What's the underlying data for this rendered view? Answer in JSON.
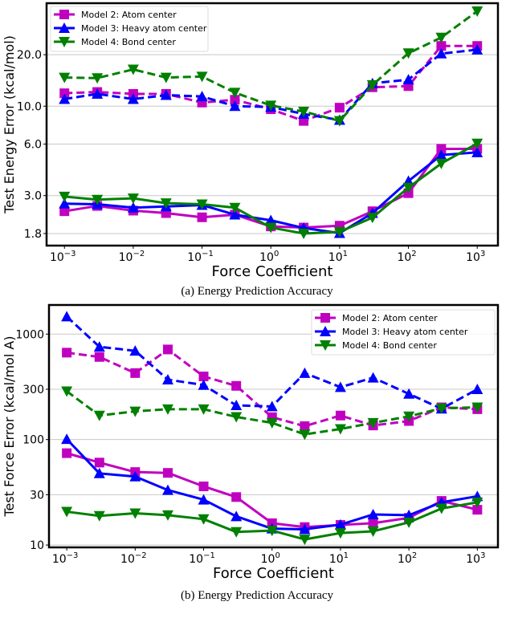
{
  "chart_data": [
    {
      "type": "line",
      "caption": "(a) Energy Prediction Accuracy",
      "xlabel": "Force Coefficient",
      "ylabel": "Test Energy Error (kcal/mol)",
      "xscale": "log",
      "yscale": "log",
      "xlim": [
        0.00055,
        2000
      ],
      "ylim": [
        1.53,
        40
      ],
      "x_ticks": [
        {
          "base": "10",
          "exp": "−3",
          "value": 0.001
        },
        {
          "base": "10",
          "exp": "−2",
          "value": 0.01
        },
        {
          "base": "10",
          "exp": "−1",
          "value": 0.1
        },
        {
          "base": "10",
          "exp": "0",
          "value": 1
        },
        {
          "base": "10",
          "exp": "1",
          "value": 10
        },
        {
          "base": "10",
          "exp": "2",
          "value": 100
        },
        {
          "base": "10",
          "exp": "3",
          "value": 1000
        }
      ],
      "y_ticks": [
        {
          "label": "1.8",
          "value": 1.8
        },
        {
          "label": "3.0",
          "value": 3
        },
        {
          "label": "6.0",
          "value": 6
        },
        {
          "label": "10.0",
          "value": 10
        },
        {
          "label": "20.0",
          "value": 20
        }
      ],
      "grid": "horizontal",
      "legend_position": "top-left",
      "x": [
        0.001,
        0.003,
        0.01,
        0.03,
        0.1,
        0.3,
        1,
        3,
        10,
        30,
        100,
        300,
        1000
      ],
      "series": [
        {
          "name": "Model 2: Atom center",
          "color": "#c000c0",
          "marker": "square",
          "style": "dashed",
          "in_legend": true,
          "values": [
            11.9,
            12.1,
            11.8,
            11.8,
            10.5,
            10.9,
            9.6,
            8.2,
            9.8,
            12.9,
            13.1,
            22.5,
            22.5
          ]
        },
        {
          "name": "Model 3: Heavy atom center",
          "color": "#0000ff",
          "marker": "triangle-up",
          "style": "dashed",
          "in_legend": true,
          "values": [
            11.0,
            11.8,
            11.0,
            11.6,
            11.4,
            10.0,
            9.9,
            9.0,
            8.3,
            13.6,
            14.3,
            20.3,
            21.4
          ]
        },
        {
          "name": "Model 4: Bond center",
          "color": "#008000",
          "marker": "triangle-down",
          "style": "dashed",
          "in_legend": true,
          "values": [
            14.7,
            14.6,
            16.4,
            14.7,
            14.9,
            12.0,
            10.1,
            9.3,
            8.2,
            13.3,
            20.4,
            25.2,
            35.9
          ]
        },
        {
          "name": "Model 2: Atom center",
          "color": "#c000c0",
          "marker": "square",
          "style": "solid",
          "in_legend": false,
          "values": [
            2.43,
            2.61,
            2.45,
            2.37,
            2.24,
            2.32,
            1.98,
            1.95,
            2.0,
            2.43,
            3.1,
            5.63,
            5.63
          ]
        },
        {
          "name": "Model 3: Heavy atom center",
          "color": "#0000ff",
          "marker": "triangle-up",
          "style": "solid",
          "in_legend": false,
          "values": [
            2.69,
            2.67,
            2.55,
            2.59,
            2.64,
            2.32,
            2.15,
            1.94,
            1.81,
            2.37,
            3.65,
            5.18,
            5.37
          ]
        },
        {
          "name": "Model 4: Bond center",
          "color": "#008000",
          "marker": "triangle-down",
          "style": "solid",
          "in_legend": false,
          "values": [
            2.96,
            2.84,
            2.89,
            2.71,
            2.67,
            2.55,
            1.95,
            1.8,
            1.84,
            2.23,
            3.34,
            4.62,
            6.05
          ]
        }
      ]
    },
    {
      "type": "line",
      "caption": "(b) Energy Prediction Accuracy",
      "xlabel": "Force Coefficient",
      "ylabel": "Test Force Error (kcal/mol A)",
      "xscale": "log",
      "yscale": "log",
      "xlim": [
        0.00055,
        2000
      ],
      "ylim": [
        9.5,
        1888
      ],
      "x_ticks": [
        {
          "base": "10",
          "exp": "−3",
          "value": 0.001
        },
        {
          "base": "10",
          "exp": "−2",
          "value": 0.01
        },
        {
          "base": "10",
          "exp": "−1",
          "value": 0.1
        },
        {
          "base": "10",
          "exp": "0",
          "value": 1
        },
        {
          "base": "10",
          "exp": "1",
          "value": 10
        },
        {
          "base": "10",
          "exp": "2",
          "value": 100
        },
        {
          "base": "10",
          "exp": "3",
          "value": 1000
        }
      ],
      "y_ticks": [
        {
          "label": "10",
          "value": 10
        },
        {
          "label": "30",
          "value": 30
        },
        {
          "label": "100",
          "value": 100
        },
        {
          "label": "300",
          "value": 300
        },
        {
          "label": "1000",
          "value": 1000
        }
      ],
      "grid": "horizontal",
      "legend_position": "top-right",
      "x": [
        0.001,
        0.003,
        0.01,
        0.03,
        0.1,
        0.3,
        1,
        3,
        10,
        30,
        100,
        300,
        1000
      ],
      "series": [
        {
          "name": "Model 2: Atom center",
          "color": "#c000c0",
          "marker": "square",
          "style": "dashed",
          "in_legend": true,
          "values": [
            667,
            607,
            427,
            715,
            397,
            323,
            163,
            134,
            169,
            136,
            150,
            202,
            194
          ]
        },
        {
          "name": "Model 3: Heavy atom center",
          "color": "#0000ff",
          "marker": "triangle-up",
          "style": "dashed",
          "in_legend": true,
          "values": [
            1466,
            758,
            694,
            370,
            329,
            211,
            206,
            427,
            314,
            386,
            271,
            196,
            300
          ]
        },
        {
          "name": "Model 4: Bond center",
          "color": "#008000",
          "marker": "triangle-down",
          "style": "dashed",
          "in_legend": true,
          "values": [
            287,
            169,
            185,
            194,
            194,
            164,
            144,
            112,
            126,
            144,
            166,
            198,
            202
          ]
        },
        {
          "name": "Model 2: Atom center",
          "color": "#c000c0",
          "marker": "square",
          "style": "solid",
          "in_legend": false,
          "values": [
            74.3,
            60.5,
            49.2,
            48.3,
            36.0,
            28.5,
            16.1,
            14.8,
            15.5,
            16.1,
            18.1,
            26.2,
            21.6
          ]
        },
        {
          "name": "Model 3: Heavy atom center",
          "color": "#0000ff",
          "marker": "triangle-up",
          "style": "solid",
          "in_legend": false,
          "values": [
            101,
            47.8,
            44.6,
            33.2,
            26.9,
            18.7,
            14.3,
            14.1,
            15.6,
            19.5,
            19.2,
            25.4,
            29.0
          ]
        },
        {
          "name": "Model 4: Bond center",
          "color": "#008000",
          "marker": "triangle-down",
          "style": "solid",
          "in_legend": false,
          "values": [
            20.7,
            18.9,
            20.0,
            19.2,
            17.6,
            13.3,
            13.7,
            11.3,
            13.0,
            13.5,
            16.4,
            22.2,
            25.4
          ]
        }
      ]
    }
  ]
}
